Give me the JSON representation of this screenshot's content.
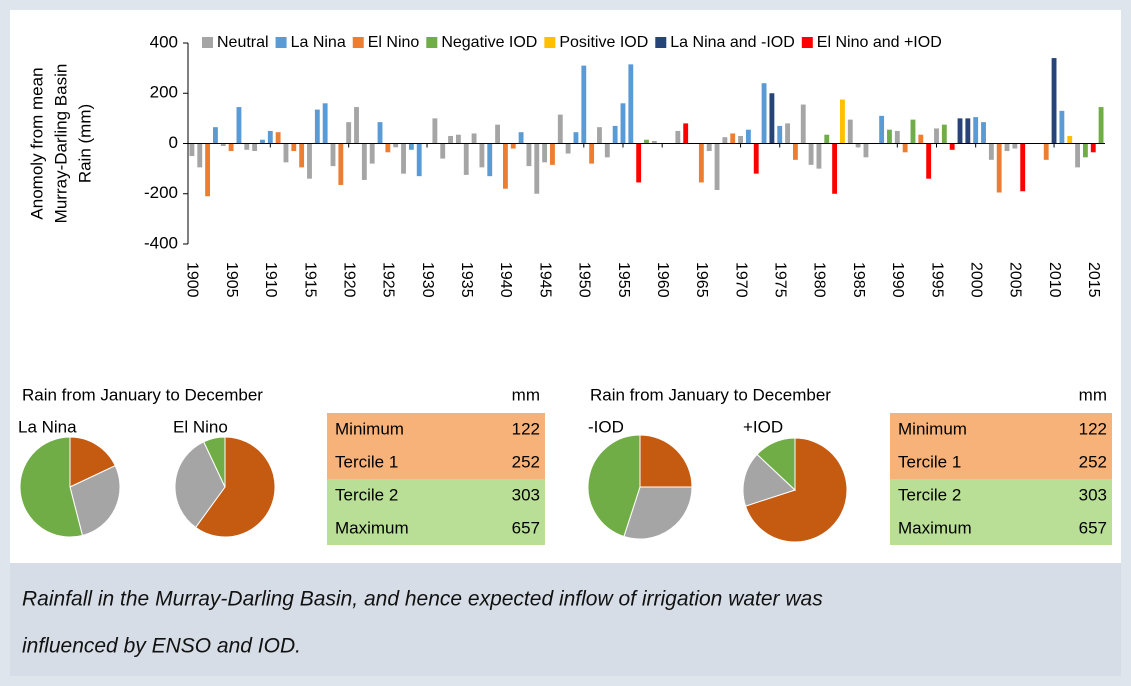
{
  "chart_data": [
    {
      "type": "bar",
      "ylabel": [
        "Anomoly from mean",
        "Murray-Darling Basin",
        "Rain (mm)"
      ],
      "xlim": [
        1899.5,
        2016.5
      ],
      "xticks": [
        1900,
        1905,
        1910,
        1915,
        1920,
        1925,
        1930,
        1935,
        1940,
        1945,
        1950,
        1955,
        1960,
        1965,
        1970,
        1975,
        1980,
        1985,
        1990,
        1995,
        2000,
        2005,
        2010,
        2015
      ],
      "ylim": [
        -400,
        400
      ],
      "yticks": [
        -400,
        -200,
        0,
        200,
        400
      ],
      "series": [
        {
          "name": "Neutral",
          "color": "#a5a5a5",
          "x": [
            1900,
            1901,
            1904,
            1907,
            1908,
            1912,
            1915,
            1918,
            1920,
            1921,
            1922,
            1923,
            1926,
            1927,
            1931,
            1932,
            1933,
            1934,
            1935,
            1936,
            1937,
            1939,
            1943,
            1944,
            1945,
            1947,
            1948,
            1952,
            1953,
            1959,
            1962,
            1966,
            1967,
            1968,
            1970,
            1976,
            1978,
            1979,
            1980,
            1984,
            1985,
            1986,
            1990,
            1995,
            2002,
            2004,
            2005,
            2013
          ],
          "values": [
            -50,
            -95,
            -10,
            -25,
            -30,
            -75,
            -140,
            -90,
            85,
            145,
            -145,
            -80,
            -15,
            -120,
            100,
            -60,
            30,
            35,
            -125,
            40,
            -95,
            75,
            -90,
            -200,
            -75,
            115,
            -40,
            65,
            -55,
            10,
            50,
            -30,
            -185,
            25,
            30,
            80,
            155,
            -85,
            -100,
            95,
            -15,
            -55,
            50,
            60,
            -65,
            -30,
            -20,
            -95
          ]
        },
        {
          "name": "La Nina",
          "color": "#5b9bd5",
          "x": [
            1903,
            1906,
            1909,
            1910,
            1916,
            1917,
            1924,
            1928,
            1929,
            1938,
            1942,
            1949,
            1950,
            1954,
            1955,
            1956,
            1971,
            1973,
            1975,
            1988,
            2000,
            2001,
            2011
          ],
          "values": [
            65,
            145,
            15,
            50,
            135,
            160,
            85,
            -25,
            -130,
            -130,
            45,
            45,
            310,
            70,
            160,
            315,
            55,
            240,
            70,
            110,
            105,
            85,
            130
          ]
        },
        {
          "name": "El Nino",
          "color": "#ed7d31",
          "x": [
            1902,
            1905,
            1911,
            1913,
            1914,
            1919,
            1925,
            1940,
            1941,
            1946,
            1951,
            1965,
            1969,
            1977,
            1991,
            1993,
            2003,
            2009
          ],
          "values": [
            -210,
            -30,
            45,
            -30,
            -95,
            -165,
            -35,
            -180,
            -20,
            -85,
            -80,
            -155,
            40,
            -65,
            -35,
            35,
            -195,
            -65
          ]
        },
        {
          "name": "Negative IOD",
          "color": "#70ad47",
          "x": [
            1958,
            1981,
            1989,
            1992,
            1996,
            2014,
            2016
          ],
          "values": [
            15,
            35,
            55,
            95,
            75,
            -55,
            145
          ]
        },
        {
          "name": "Positive IOD",
          "color": "#ffc000",
          "x": [
            1983,
            2012
          ],
          "values": [
            175,
            30
          ]
        },
        {
          "name": "La Nina and -IOD",
          "color": "#264478",
          "x": [
            1974,
            1998,
            1999,
            2010
          ],
          "values": [
            200,
            100,
            100,
            340
          ]
        },
        {
          "name": "El Nino and +IOD",
          "color": "#ff0000",
          "x": [
            1957,
            1963,
            1972,
            1982,
            1994,
            1997,
            2006,
            2015
          ],
          "values": [
            -155,
            80,
            -120,
            -200,
            -140,
            -25,
            -190,
            -35
          ]
        }
      ]
    },
    {
      "type": "pie",
      "title": "La Nina",
      "values": [
        18,
        28,
        54
      ],
      "colors": [
        "#c55a11",
        "#a5a5a5",
        "#70ad47"
      ]
    },
    {
      "type": "pie",
      "title": "El Nino",
      "values": [
        60,
        33,
        7
      ],
      "colors": [
        "#c55a11",
        "#a5a5a5",
        "#70ad47"
      ]
    },
    {
      "type": "pie",
      "title": "-IOD",
      "values": [
        25,
        30,
        45
      ],
      "colors": [
        "#c55a11",
        "#a5a5a5",
        "#70ad47"
      ]
    },
    {
      "type": "pie",
      "title": "+IOD",
      "values": [
        70,
        17,
        13
      ],
      "colors": [
        "#c55a11",
        "#a5a5a5",
        "#70ad47"
      ]
    }
  ],
  "tables": [
    {
      "title": "Rain from January to December",
      "unit": "mm",
      "rows": [
        {
          "label": "Minimum",
          "value": 122
        },
        {
          "label": "Tercile 1",
          "value": 252
        },
        {
          "label": "Tercile 2",
          "value": 303
        },
        {
          "label": "Maximum",
          "value": 657
        }
      ]
    },
    {
      "title": "Rain from January to December",
      "unit": "mm",
      "rows": [
        {
          "label": "Minimum",
          "value": 122
        },
        {
          "label": "Tercile 1",
          "value": 252
        },
        {
          "label": "Tercile 2",
          "value": 303
        },
        {
          "label": "Maximum",
          "value": 657
        }
      ]
    }
  ],
  "caption": [
    "Rainfall in the Murray-Darling Basin, and hence expected inflow of irrigation water was",
    "influenced by ENSO and IOD."
  ]
}
